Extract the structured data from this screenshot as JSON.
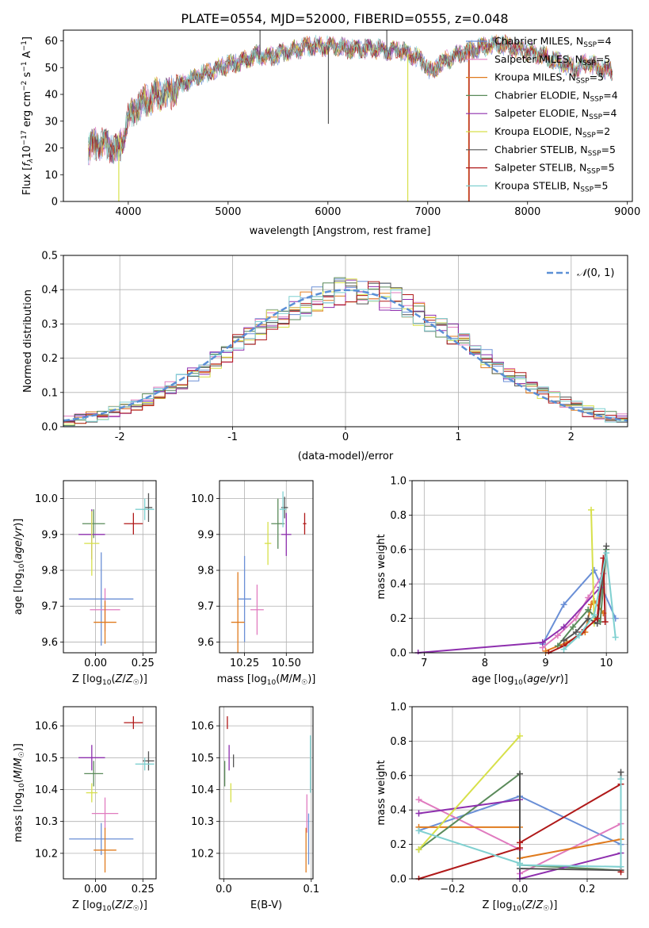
{
  "figure_title": "PLATE=0554, MJD=52000, FIBERID=0555, z=0.048",
  "colors": {
    "series": [
      "#6a8fd6",
      "#e07bbf",
      "#e07b1e",
      "#5a8a5a",
      "#8e2fae",
      "#d7e04a",
      "#555555",
      "#b01919",
      "#7fd0d0"
    ],
    "normal_curve": "#5b8fd6",
    "grid": "#b0b0b0"
  },
  "chart_data": [
    {
      "id": "spectrum",
      "type": "line",
      "xlabel": "wavelength [Angstrom, rest frame]",
      "ylabel": "Flux [fλ 10⁻¹⁷ erg cm⁻² s⁻¹ A⁻¹]",
      "xlim": [
        3350,
        9050
      ],
      "ylim": [
        0,
        64
      ],
      "xticks": [
        4000,
        5000,
        6000,
        7000,
        8000,
        9000
      ],
      "yticks": [
        0,
        10,
        20,
        30,
        40,
        50,
        60
      ],
      "grid": false,
      "legend_position": "top-right",
      "continuum": {
        "x": [
          3600,
          3700,
          3800,
          3900,
          3950,
          4000,
          4100,
          4200,
          4300,
          4400,
          4500,
          4600,
          4700,
          4800,
          4900,
          5000,
          5100,
          5200,
          5300,
          5400,
          5500,
          5600,
          5700,
          5800,
          5900,
          6000,
          6100,
          6200,
          6300,
          6400,
          6500,
          6600,
          6700,
          6800,
          6900,
          7000,
          7050,
          7100,
          7200,
          7300,
          7400,
          7500,
          7600,
          7700,
          7800,
          7900,
          8000,
          8100,
          8200,
          8300,
          8400,
          8500,
          8600,
          8700,
          8800
        ],
        "y": [
          20,
          22,
          21,
          19,
          24,
          31,
          36,
          38,
          40,
          40,
          43,
          45,
          47,
          48,
          50,
          51,
          52,
          53,
          55,
          54,
          55,
          56,
          57,
          58,
          58,
          58,
          58,
          57,
          57,
          57,
          57,
          56,
          57,
          55,
          54,
          50,
          48,
          51,
          53,
          55,
          56,
          57,
          58,
          59,
          58,
          57,
          56,
          55,
          54,
          52,
          51,
          50,
          52,
          50,
          49
        ]
      },
      "series": [
        {
          "name": "Chabrier MILES, N_SSP=4",
          "label_main": "Chabrier MILES, N",
          "label_sub": "SSP",
          "label_tail": "=4"
        },
        {
          "name": "Salpeter MILES, N_SSP=5",
          "label_main": "Salpeter MILES, N",
          "label_sub": "SSP",
          "label_tail": "=5"
        },
        {
          "name": "Kroupa MILES, N_SSP=5",
          "label_main": "Kroupa MILES, N",
          "label_sub": "SSP",
          "label_tail": "=5"
        },
        {
          "name": "Chabrier ELODIE, N_SSP=4",
          "label_main": "Chabrier ELODIE, N",
          "label_sub": "SSP",
          "label_tail": "=4"
        },
        {
          "name": "Salpeter ELODIE, N_SSP=4",
          "label_main": "Salpeter ELODIE, N",
          "label_sub": "SSP",
          "label_tail": "=4"
        },
        {
          "name": "Kroupa ELODIE, N_SSP=2",
          "label_main": "Kroupa ELODIE, N",
          "label_sub": "SSP",
          "label_tail": "=2"
        },
        {
          "name": "Chabrier STELIB, N_SSP=5",
          "label_main": "Chabrier STELIB, N",
          "label_sub": "SSP",
          "label_tail": "=5"
        },
        {
          "name": "Salpeter STELIB, N_SSP=5",
          "label_main": "Salpeter STELIB, N",
          "label_sub": "SSP",
          "label_tail": "=5"
        },
        {
          "name": "Kroupa STELIB, N_SSP=5",
          "label_main": "Kroupa STELIB, N",
          "label_sub": "SSP",
          "label_tail": "=5"
        }
      ],
      "features": [
        {
          "x": 3905,
          "y_low": 0,
          "series": 5
        },
        {
          "x": 6005,
          "y_low": 29,
          "series": 6
        },
        {
          "x": 6800,
          "y_low": 0,
          "series": 5
        },
        {
          "x": 7410,
          "y_low": 0,
          "series": 2
        },
        {
          "x": 7415,
          "y_low": 0,
          "series": 7
        },
        {
          "x": 5320,
          "y_high": 66,
          "series": 6
        },
        {
          "x": 6590,
          "y_high": 66,
          "series": 6
        }
      ]
    },
    {
      "id": "residuals",
      "type": "histogram",
      "xlabel": "(data-model)/error",
      "ylabel": "Normed distribution",
      "xlim": [
        -2.5,
        2.5
      ],
      "ylim": [
        0,
        0.5
      ],
      "xticks": [
        -2,
        -1,
        0,
        1,
        2
      ],
      "yticks": [
        0.0,
        0.1,
        0.2,
        0.3,
        0.4,
        0.5
      ],
      "grid": true,
      "bin_edges_start": -2.5,
      "bin_width": 0.1,
      "reference_curve": {
        "name": "N(0,1)",
        "label_script": "𝒩",
        "label_rest": "(0, 1)",
        "legend_position": "top-right"
      },
      "base": [
        0.018,
        0.022,
        0.028,
        0.035,
        0.044,
        0.054,
        0.066,
        0.079,
        0.095,
        0.113,
        0.13,
        0.15,
        0.17,
        0.194,
        0.216,
        0.24,
        0.262,
        0.285,
        0.307,
        0.327,
        0.345,
        0.361,
        0.376,
        0.388,
        0.396,
        0.4,
        0.398,
        0.391,
        0.38,
        0.366,
        0.35,
        0.333,
        0.312,
        0.29,
        0.268,
        0.245,
        0.222,
        0.198,
        0.176,
        0.155,
        0.135,
        0.116,
        0.098,
        0.083,
        0.069,
        0.057,
        0.046,
        0.037,
        0.029,
        0.023
      ]
    },
    {
      "id": "age_vs_Z",
      "type": "scatter_errorbar",
      "xlabel": "Z [log10(Z/Z☉)]",
      "ylabel": "age  [log10(age/yr)]",
      "xlim": [
        -0.17,
        0.32
      ],
      "ylim": [
        9.57,
        10.05
      ],
      "xticks": [
        0.0,
        0.25
      ],
      "xticklabels": [
        "0.00",
        "0.25"
      ],
      "yticks": [
        9.6,
        9.7,
        9.8,
        9.9,
        10.0
      ],
      "yticklabels": [
        "9.6",
        "9.7",
        "9.8",
        "9.9",
        "10.0"
      ],
      "grid": true,
      "points": [
        {
          "s": 0,
          "x": 0.03,
          "y": 9.72,
          "xe": 0.17,
          "ye": 0.13
        },
        {
          "s": 1,
          "x": 0.05,
          "y": 9.69,
          "xe": 0.08,
          "ye": 0.06
        },
        {
          "s": 2,
          "x": 0.05,
          "y": 9.655,
          "xe": 0.06,
          "ye": 0.06
        },
        {
          "s": 3,
          "x": -0.01,
          "y": 9.93,
          "xe": 0.06,
          "ye": 0.04
        },
        {
          "s": 4,
          "x": -0.02,
          "y": 9.9,
          "xe": 0.07,
          "ye": 0.07
        },
        {
          "s": 5,
          "x": -0.02,
          "y": 9.875,
          "xe": 0.04,
          "ye": 0.09
        },
        {
          "s": 6,
          "x": 0.28,
          "y": 9.975,
          "xe": 0.02,
          "ye": 0.04
        },
        {
          "s": 7,
          "x": 0.2,
          "y": 9.93,
          "xe": 0.05,
          "ye": 0.03
        },
        {
          "s": 8,
          "x": 0.26,
          "y": 9.97,
          "xe": 0.05,
          "ye": 0.03
        }
      ]
    },
    {
      "id": "age_vs_mass",
      "type": "scatter_errorbar",
      "xlabel": "mass [log10(M/M☉)]",
      "ylabel": "",
      "xlim": [
        10.1,
        10.66
      ],
      "ylim": [
        9.57,
        10.05
      ],
      "xticks": [
        10.25,
        10.5
      ],
      "xticklabels": [
        "10.25",
        "10.50"
      ],
      "yticks": [
        9.6,
        9.7,
        9.8,
        9.9,
        10.0
      ],
      "yticklabels": [
        "9.6",
        "9.7",
        "9.8",
        "9.9",
        "10.0"
      ],
      "grid": true,
      "points": [
        {
          "s": 0,
          "x": 10.25,
          "y": 9.72,
          "xe": 0.04,
          "ye": 0.12
        },
        {
          "s": 1,
          "x": 10.325,
          "y": 9.69,
          "xe": 0.04,
          "ye": 0.07
        },
        {
          "s": 2,
          "x": 10.21,
          "y": 9.655,
          "xe": 0.04,
          "ye": 0.14
        },
        {
          "s": 3,
          "x": 10.45,
          "y": 9.93,
          "xe": 0.04,
          "ye": 0.07
        },
        {
          "s": 4,
          "x": 10.5,
          "y": 9.9,
          "xe": 0.03,
          "ye": 0.06
        },
        {
          "s": 5,
          "x": 10.39,
          "y": 9.875,
          "xe": 0.02,
          "ye": 0.06
        },
        {
          "s": 6,
          "x": 10.49,
          "y": 9.975,
          "xe": 0.02,
          "ye": 0.03
        },
        {
          "s": 7,
          "x": 10.61,
          "y": 9.93,
          "xe": 0.01,
          "ye": 0.03
        },
        {
          "s": 8,
          "x": 10.48,
          "y": 9.97,
          "xe": 0.02,
          "ye": 0.05
        }
      ]
    },
    {
      "id": "weight_vs_age",
      "type": "line",
      "xlabel": "age  [log10(age/yr)]",
      "ylabel": "mass weight",
      "xlim": [
        6.8,
        10.35
      ],
      "ylim": [
        0,
        1
      ],
      "xticks": [
        7,
        8,
        9,
        10
      ],
      "yticks": [
        0.0,
        0.2,
        0.4,
        0.6,
        0.8,
        1.0
      ],
      "grid": true,
      "series": [
        {
          "s": 0,
          "x": [
            8.95,
            9.3,
            9.8,
            10.15
          ],
          "y": [
            0.05,
            0.28,
            0.48,
            0.2
          ]
        },
        {
          "s": 1,
          "x": [
            8.95,
            9.2,
            9.5,
            9.7,
            9.95
          ],
          "y": [
            0.03,
            0.1,
            0.2,
            0.32,
            0.46
          ]
        },
        {
          "s": 2,
          "x": [
            9.0,
            9.35,
            9.65,
            9.75,
            9.8,
            9.95
          ],
          "y": [
            0.01,
            0.06,
            0.12,
            0.28,
            0.3,
            0.23
          ]
        },
        {
          "s": 3,
          "x": [
            9.2,
            9.45,
            9.7,
            9.9,
            10.0
          ],
          "y": [
            0.04,
            0.15,
            0.25,
            0.18,
            0.6
          ]
        },
        {
          "s": 4,
          "x": [
            6.9,
            8.95,
            9.3,
            9.9
          ],
          "y": [
            0.0,
            0.06,
            0.15,
            0.38
          ]
        },
        {
          "s": 5,
          "x": [
            9.75,
            9.8
          ],
          "y": [
            0.83,
            0.17
          ]
        },
        {
          "s": 6,
          "x": [
            9.3,
            9.5,
            9.7,
            9.85,
            10.0
          ],
          "y": [
            0.07,
            0.12,
            0.2,
            0.17,
            0.62
          ]
        },
        {
          "s": 7,
          "x": [
            9.05,
            9.3,
            9.6,
            9.85,
            9.95,
            9.98
          ],
          "y": [
            0.0,
            0.04,
            0.12,
            0.2,
            0.55,
            0.18
          ]
        },
        {
          "s": 8,
          "x": [
            9.3,
            9.55,
            9.8,
            10.0,
            10.15
          ],
          "y": [
            0.02,
            0.1,
            0.22,
            0.58,
            0.09
          ]
        }
      ]
    },
    {
      "id": "mass_vs_Z",
      "type": "scatter_errorbar",
      "xlabel": "Z [log10(Z/Z☉)]",
      "ylabel": "mass [log10(M/M☉)]",
      "xlim": [
        -0.17,
        0.32
      ],
      "ylim": [
        10.12,
        10.66
      ],
      "xticks": [
        0.0,
        0.25
      ],
      "xticklabels": [
        "0.00",
        "0.25"
      ],
      "yticks": [
        10.2,
        10.3,
        10.4,
        10.5,
        10.6
      ],
      "yticklabels": [
        "10.2",
        "10.3",
        "10.4",
        "10.5",
        "10.6"
      ],
      "grid": true,
      "points": [
        {
          "s": 0,
          "x": 0.03,
          "y": 10.245,
          "xe": 0.17,
          "ye": 0.05
        },
        {
          "s": 1,
          "x": 0.05,
          "y": 10.325,
          "xe": 0.07,
          "ye": 0.05
        },
        {
          "s": 2,
          "x": 0.05,
          "y": 10.21,
          "xe": 0.06,
          "ye": 0.07
        },
        {
          "s": 3,
          "x": -0.01,
          "y": 10.45,
          "xe": 0.05,
          "ye": 0.04
        },
        {
          "s": 4,
          "x": -0.02,
          "y": 10.5,
          "xe": 0.07,
          "ye": 0.04
        },
        {
          "s": 5,
          "x": -0.02,
          "y": 10.39,
          "xe": 0.03,
          "ye": 0.03
        },
        {
          "s": 6,
          "x": 0.28,
          "y": 10.49,
          "xe": 0.03,
          "ye": 0.03
        },
        {
          "s": 7,
          "x": 0.2,
          "y": 10.61,
          "xe": 0.05,
          "ye": 0.02
        },
        {
          "s": 8,
          "x": 0.26,
          "y": 10.48,
          "xe": 0.05,
          "ye": 0.02
        }
      ]
    },
    {
      "id": "mass_vs_ebv",
      "type": "scatter_errorbar",
      "xlabel": "E(B-V)",
      "ylabel": "",
      "xlim": [
        -0.005,
        0.102
      ],
      "ylim": [
        10.12,
        10.66
      ],
      "xticks": [
        0.0,
        0.1
      ],
      "xticklabels": [
        "0.0",
        "0.1"
      ],
      "yticks": [
        10.2,
        10.3,
        10.4,
        10.5,
        10.6
      ],
      "yticklabels": [
        "10.2",
        "10.3",
        "10.4",
        "10.5",
        "10.6"
      ],
      "grid": true,
      "points": [
        {
          "s": 0,
          "x": 0.097,
          "y": 10.245,
          "xe": 0.0,
          "ye": 0.08
        },
        {
          "s": 1,
          "x": 0.095,
          "y": 10.325,
          "xe": 0.0,
          "ye": 0.06
        },
        {
          "s": 2,
          "x": 0.094,
          "y": 10.21,
          "xe": 0.0,
          "ye": 0.07
        },
        {
          "s": 3,
          "x": 0.001,
          "y": 10.45,
          "xe": 0.0,
          "ye": 0.04
        },
        {
          "s": 4,
          "x": 0.006,
          "y": 10.5,
          "xe": 0.0,
          "ye": 0.04
        },
        {
          "s": 5,
          "x": 0.008,
          "y": 10.39,
          "xe": 0.0,
          "ye": 0.03
        },
        {
          "s": 6,
          "x": 0.011,
          "y": 10.49,
          "xe": 0.0,
          "ye": 0.02
        },
        {
          "s": 7,
          "x": 0.004,
          "y": 10.61,
          "xe": 0.0,
          "ye": 0.02
        },
        {
          "s": 8,
          "x": 0.099,
          "y": 10.48,
          "xe": 0.0,
          "ye": 0.09
        }
      ]
    },
    {
      "id": "weight_vs_Z",
      "type": "line",
      "xlabel": "Z [log10(Z/Z☉)]",
      "ylabel": "mass weight",
      "xlim": [
        -0.32,
        0.32
      ],
      "ylim": [
        0,
        1
      ],
      "xticks": [
        -0.2,
        0.0,
        0.2
      ],
      "xticklabels": [
        "−0.2",
        "0.0",
        "0.2"
      ],
      "yticks": [
        0.0,
        0.2,
        0.4,
        0.6,
        0.8,
        1.0
      ],
      "yticklabels": [
        "0.0",
        "0.2",
        "0.4",
        "0.6",
        "0.8",
        "1.0"
      ],
      "grid": true,
      "series": [
        {
          "s": 0,
          "x": [
            -0.3,
            0.0,
            0.3
          ],
          "y": [
            0.28,
            0.48,
            0.2
          ]
        },
        {
          "s": 1,
          "x": [
            -0.3,
            0.0,
            0.0,
            0.3
          ],
          "y": [
            0.46,
            0.17,
            0.03,
            0.32
          ]
        },
        {
          "s": 2,
          "x": [
            -0.3,
            0.0,
            0.0,
            0.3
          ],
          "y": [
            0.3,
            0.3,
            0.12,
            0.23
          ]
        },
        {
          "s": 3,
          "x": [
            -0.3,
            0.0,
            0.0,
            0.3
          ],
          "y": [
            0.17,
            0.61,
            0.08,
            0.05
          ]
        },
        {
          "s": 4,
          "x": [
            -0.3,
            0.0,
            0.0,
            0.3
          ],
          "y": [
            0.38,
            0.46,
            0.0,
            0.15
          ]
        },
        {
          "s": 5,
          "x": [
            -0.3,
            0.0
          ],
          "y": [
            0.17,
            0.83
          ]
        },
        {
          "s": 6,
          "x": [
            0.0,
            0.0,
            0.3,
            0.3
          ],
          "y": [
            0.61,
            0.06,
            0.05,
            0.62
          ]
        },
        {
          "s": 7,
          "x": [
            -0.3,
            0.0,
            0.0,
            0.3,
            0.3
          ],
          "y": [
            0.0,
            0.18,
            0.21,
            0.55,
            0.04
          ]
        },
        {
          "s": 8,
          "x": [
            -0.3,
            0.0,
            0.0,
            0.3,
            0.3
          ],
          "y": [
            0.28,
            0.09,
            0.08,
            0.07,
            0.58
          ]
        }
      ]
    }
  ]
}
